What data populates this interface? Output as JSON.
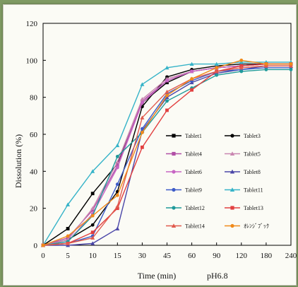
{
  "chart_data": {
    "type": "line",
    "title": "",
    "xlabel": "Time (min)",
    "xlabel_suffix": "pH6.8",
    "ylabel": "Dissolution (%)",
    "categories": [
      "0",
      "5",
      "10",
      "15",
      "30",
      "45",
      "60",
      "90",
      "120",
      "180",
      "240"
    ],
    "ylim": [
      0,
      120
    ],
    "yticks": [
      0,
      20,
      40,
      60,
      80,
      100,
      120
    ],
    "grid": false,
    "legend_position": "lower-right",
    "series": [
      {
        "name": "Tablet1",
        "color": "#000000",
        "marker": "square",
        "values": [
          0,
          9,
          28,
          44,
          77,
          88,
          94,
          96,
          97,
          98,
          98
        ]
      },
      {
        "name": "Tablet3",
        "color": "#000000",
        "marker": "circle",
        "values": [
          0,
          3,
          11,
          29,
          75,
          91,
          95,
          97,
          98,
          98,
          98
        ]
      },
      {
        "name": "Tablet4",
        "color": "#b14fa6",
        "marker": "square",
        "values": [
          0,
          4,
          19,
          43,
          78,
          89,
          94,
          96,
          97,
          98,
          98
        ]
      },
      {
        "name": "Tablet5",
        "color": "#c985b0",
        "marker": "triangle",
        "values": [
          0,
          3,
          20,
          45,
          79,
          90,
          94,
          96,
          97,
          98,
          98
        ]
      },
      {
        "name": "Tablet6",
        "color": "#c765c4",
        "marker": "circle",
        "values": [
          0,
          2,
          17,
          42,
          77,
          89,
          94,
          96,
          97,
          98,
          98
        ]
      },
      {
        "name": "Tablet8",
        "color": "#4a46a8",
        "marker": "triangle",
        "values": [
          0,
          0,
          1,
          9,
          62,
          80,
          88,
          93,
          95,
          97,
          97
        ]
      },
      {
        "name": "Tablet9",
        "color": "#3e5cc8",
        "marker": "circle",
        "values": [
          0,
          1,
          5,
          33,
          63,
          82,
          89,
          94,
          95,
          96,
          96
        ]
      },
      {
        "name": "Tablet11",
        "color": "#35b3c8",
        "marker": "triangle",
        "values": [
          0,
          22,
          40,
          54,
          87,
          96,
          98,
          98,
          99,
          99,
          99
        ]
      },
      {
        "name": "Tablet12",
        "color": "#1f9a9a",
        "marker": "circle",
        "values": [
          0,
          2,
          16,
          48,
          61,
          78,
          85,
          92,
          94,
          95,
          95
        ]
      },
      {
        "name": "Tablet13",
        "color": "#e24040",
        "marker": "square",
        "values": [
          0,
          1,
          7,
          20,
          53,
          73,
          84,
          94,
          97,
          98,
          98
        ]
      },
      {
        "name": "Tablet14",
        "color": "#e05a4e",
        "marker": "triangle",
        "values": [
          0,
          1,
          4,
          21,
          69,
          83,
          90,
          94,
          96,
          97,
          97
        ]
      },
      {
        "name": "ｵﾚﾝｼﾞﾌﾞｯｸ",
        "color": "#f08a1a",
        "marker": "circle",
        "values": [
          0,
          5,
          16,
          27,
          61,
          81,
          90,
          96,
          100,
          98,
          98
        ]
      }
    ]
  }
}
